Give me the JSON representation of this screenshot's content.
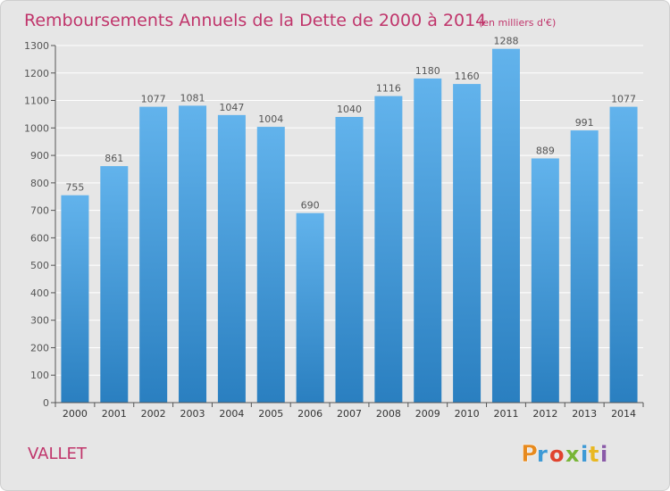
{
  "chart_data": {
    "type": "bar",
    "title": "Remboursements Annuels de la Dette de 2000 à 2014",
    "subtitle": "(en milliers d'€)",
    "categories": [
      "2000",
      "2001",
      "2002",
      "2003",
      "2004",
      "2005",
      "2006",
      "2007",
      "2008",
      "2009",
      "2010",
      "2011",
      "2012",
      "2013",
      "2014"
    ],
    "values": [
      755,
      861,
      1077,
      1081,
      1047,
      1004,
      690,
      1040,
      1116,
      1180,
      1160,
      1288,
      889,
      991,
      1077
    ],
    "ylim": [
      0,
      1300
    ],
    "yticks": [
      0,
      100,
      200,
      300,
      400,
      500,
      600,
      700,
      800,
      900,
      1000,
      1100,
      1200,
      1300
    ],
    "grid": true,
    "xlabel": "",
    "ylabel": "",
    "colors": {
      "bar_top": "#62b3ec",
      "bar_bottom": "#2a7fc0",
      "title": "#c0356b",
      "label": "#555555"
    }
  },
  "footer": {
    "commune": "VALLET",
    "brand": "Proxiti"
  }
}
